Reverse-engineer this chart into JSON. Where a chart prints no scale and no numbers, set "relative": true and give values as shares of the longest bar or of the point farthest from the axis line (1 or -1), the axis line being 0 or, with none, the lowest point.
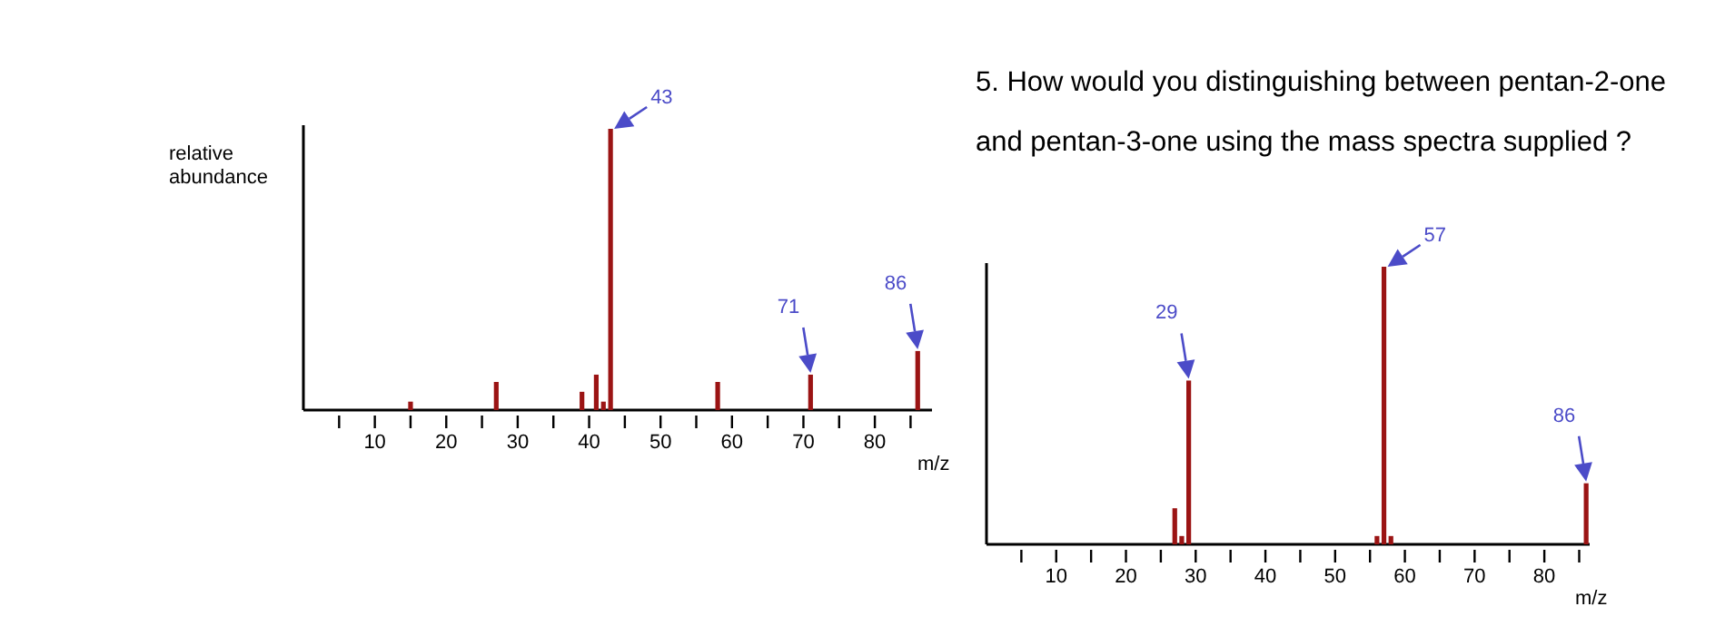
{
  "chart_data": [
    {
      "type": "bar",
      "relative": true,
      "x": [
        15,
        27,
        39,
        41,
        42,
        43,
        58,
        71,
        86
      ],
      "values": [
        0.03,
        0.1,
        0.065,
        0.126,
        0.03,
        1,
        0.1,
        0.126,
        0.21
      ],
      "color": "#9b1414",
      "xlim": [
        0,
        88
      ],
      "xticks": [
        {
          "value": 5,
          "label": null
        },
        10,
        {
          "value": 15,
          "label": null
        },
        20,
        {
          "value": 25,
          "label": null
        },
        30,
        {
          "value": 35,
          "label": null
        },
        40,
        {
          "value": 45,
          "label": null
        },
        50,
        {
          "value": 55,
          "label": null
        },
        60,
        {
          "value": 65,
          "label": null
        },
        70,
        {
          "value": 75,
          "label": null
        },
        80,
        {
          "value": 85,
          "label": null
        }
      ],
      "ylabel": "relative abundance",
      "xlabel": "m/z",
      "annotations": [
        {
          "text": "43",
          "x": 43,
          "y": 1
        },
        {
          "text": "71",
          "x": 71,
          "y": 0.126
        },
        {
          "text": "86",
          "x": 86,
          "y": 0.21
        }
      ]
    },
    {
      "type": "bar",
      "relative": true,
      "title": "5. How would you distinguishing between pentan-2-one and pentan-3-one using the mass spectra supplied ?",
      "x": [
        27,
        28,
        29,
        56,
        57,
        58,
        86
      ],
      "values": [
        0.13,
        0.03,
        0.59,
        0.03,
        1,
        0.03,
        0.22
      ],
      "color": "#9b1414",
      "xlim": [
        0,
        86.5
      ],
      "xticks": [
        {
          "value": 5,
          "label": null
        },
        10,
        {
          "value": 15,
          "label": null
        },
        20,
        {
          "value": 25,
          "label": null
        },
        30,
        {
          "value": 35,
          "label": null
        },
        40,
        {
          "value": 45,
          "label": null
        },
        50,
        {
          "value": 55,
          "label": null
        },
        60,
        {
          "value": 65,
          "label": null
        },
        70,
        {
          "value": 75,
          "label": null
        },
        80,
        {
          "value": 85,
          "label": null
        }
      ],
      "xlabel": "m/z",
      "annotations": [
        {
          "text": "29",
          "x": 29,
          "y": 0.59
        },
        {
          "text": "57",
          "x": 57,
          "y": 1
        },
        {
          "text": "86",
          "x": 86,
          "y": 0.22
        }
      ]
    }
  ]
}
